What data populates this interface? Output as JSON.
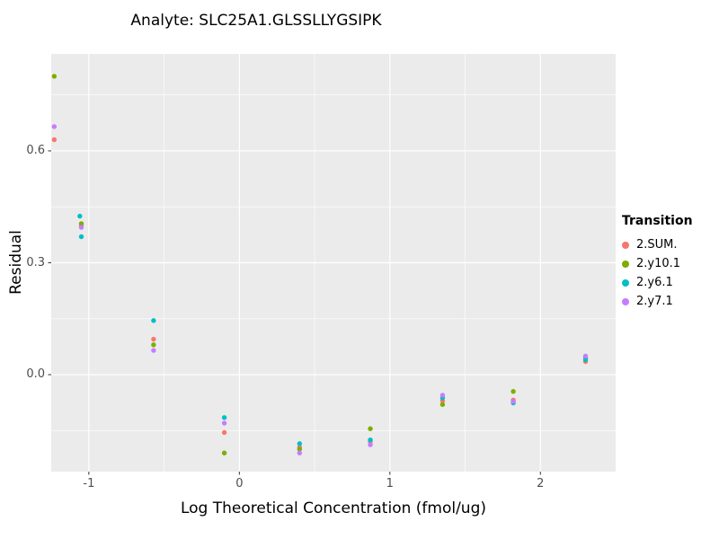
{
  "title": "Analyte: SLC25A1.GLSSLLYGSIPK",
  "chart_data": {
    "type": "scatter",
    "title": "Analyte: SLC25A1.GLSSLLYGSIPK",
    "xlabel": "Log Theoretical Concentration (fmol/ug)",
    "ylabel": "Residual",
    "xlim": [
      -1.25,
      2.5
    ],
    "ylim": [
      -0.26,
      0.86
    ],
    "x_ticks": [
      -1,
      0,
      1,
      2
    ],
    "x_tick_labels": [
      "-1",
      "0",
      "1",
      "2"
    ],
    "y_ticks": [
      0.0,
      0.3,
      0.6
    ],
    "y_tick_labels": [
      "0.0",
      "0.3",
      "0.6"
    ],
    "x_minor": [
      -0.5,
      0.5,
      1.5
    ],
    "y_minor": [
      -0.15,
      0.15,
      0.45,
      0.75
    ],
    "panel_bg": "#EBEBEB",
    "grid_color": "#FFFFFF",
    "tick_color": "#333333",
    "legend_position": "right",
    "legend_title": "Transition",
    "series": [
      {
        "name": "2.SUM.",
        "color": "#F8766D",
        "points": [
          [
            -1.23,
            0.63
          ],
          [
            -1.05,
            0.4
          ],
          [
            -0.57,
            0.095
          ],
          [
            -0.1,
            -0.155
          ],
          [
            0.4,
            -0.195
          ],
          [
            0.87,
            -0.18
          ],
          [
            1.35,
            -0.07
          ],
          [
            1.82,
            -0.068
          ],
          [
            2.3,
            0.035
          ]
        ]
      },
      {
        "name": "2.y10.1",
        "color": "#7CAE00",
        "points": [
          [
            -1.23,
            0.8
          ],
          [
            -1.05,
            0.405
          ],
          [
            -0.57,
            0.08
          ],
          [
            -0.1,
            -0.21
          ],
          [
            0.4,
            -0.2
          ],
          [
            0.87,
            -0.145
          ],
          [
            1.35,
            -0.08
          ],
          [
            1.82,
            -0.045
          ],
          [
            2.3,
            0.045
          ]
        ]
      },
      {
        "name": "2.y6.1",
        "color": "#00BFC4",
        "points": [
          [
            -1.06,
            0.425
          ],
          [
            -1.05,
            0.37
          ],
          [
            -0.57,
            0.145
          ],
          [
            -0.1,
            -0.115
          ],
          [
            0.4,
            -0.185
          ],
          [
            0.87,
            -0.175
          ],
          [
            1.35,
            -0.062
          ],
          [
            1.82,
            -0.076
          ],
          [
            2.3,
            0.04
          ]
        ]
      },
      {
        "name": "2.y7.1",
        "color": "#C77CFF",
        "points": [
          [
            -1.23,
            0.665
          ],
          [
            -1.05,
            0.395
          ],
          [
            -0.57,
            0.065
          ],
          [
            -0.1,
            -0.13
          ],
          [
            0.4,
            -0.21
          ],
          [
            0.87,
            -0.188
          ],
          [
            1.35,
            -0.055
          ],
          [
            1.82,
            -0.072
          ],
          [
            2.3,
            0.05
          ]
        ]
      }
    ]
  }
}
